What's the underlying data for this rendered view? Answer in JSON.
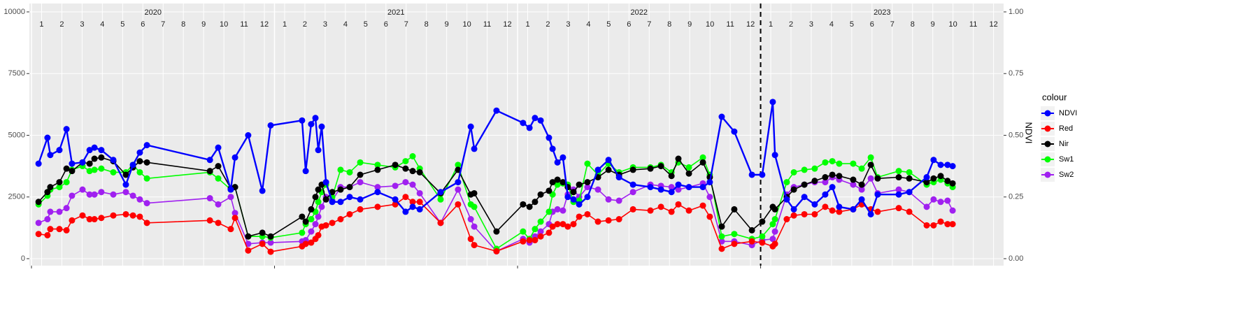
{
  "chart_data": {
    "type": "line",
    "x": [
      0.35,
      0.79,
      0.93,
      1.38,
      1.73,
      2.0,
      2.52,
      2.87,
      3.11,
      3.45,
      4.04,
      4.66,
      5.01,
      5.35,
      5.7,
      8.81,
      9.22,
      9.84,
      10.05,
      10.7,
      11.4,
      11.81,
      13.36,
      13.54,
      13.81,
      14.02,
      14.16,
      14.33,
      14.54,
      14.85,
      15.26,
      15.71,
      16.23,
      17.09,
      17.96,
      18.47,
      18.82,
      19.17,
      20.2,
      21.06,
      21.69,
      21.86,
      22.96,
      24.27,
      24.59,
      24.86,
      25.14,
      25.55,
      25.73,
      25.97,
      26.24,
      26.48,
      26.76,
      27.04,
      27.45,
      27.97,
      28.49,
      29.01,
      29.7,
      30.56,
      31.08,
      31.6,
      31.94,
      32.46,
      33.15,
      33.49,
      34.08,
      34.7,
      35.57,
      36.08,
      36.6,
      36.71,
      37.29,
      37.64,
      38.16,
      38.67,
      39.19,
      39.54,
      39.88,
      40.57,
      40.99,
      41.44,
      41.78,
      42.82,
      43.34,
      44.2,
      44.54,
      44.89,
      45.23,
      45.48
    ],
    "series": [
      {
        "name": "NDVI",
        "color": "#0000ff",
        "axis": "y2",
        "values": [
          0.385,
          0.49,
          0.42,
          0.44,
          0.525,
          0.385,
          0.39,
          0.44,
          0.45,
          0.44,
          0.4,
          0.3,
          0.38,
          0.43,
          0.46,
          0.4,
          0.45,
          0.28,
          0.41,
          0.5,
          0.275,
          0.54,
          0.56,
          0.355,
          0.545,
          0.57,
          0.44,
          0.535,
          0.31,
          0.23,
          0.23,
          0.25,
          0.24,
          0.27,
          0.24,
          0.19,
          0.21,
          0.2,
          0.27,
          0.31,
          0.535,
          0.445,
          0.6,
          0.55,
          0.53,
          0.57,
          0.56,
          0.49,
          0.445,
          0.39,
          0.41,
          0.25,
          0.24,
          0.22,
          0.25,
          0.36,
          0.4,
          0.33,
          0.3,
          0.29,
          0.28,
          0.27,
          0.3,
          0.29,
          0.29,
          0.31,
          0.575,
          0.515,
          0.34,
          0.34,
          0.635,
          0.42,
          0.24,
          0.2,
          0.25,
          0.22,
          0.26,
          0.29,
          0.21,
          0.2,
          0.24,
          0.18,
          0.26,
          0.26,
          0.27,
          0.33,
          0.4,
          0.38,
          0.38,
          0.375
        ]
      },
      {
        "name": "Red",
        "color": "#ff0000",
        "values": [
          1000,
          950,
          1200,
          1200,
          1150,
          1550,
          1750,
          1600,
          1600,
          1650,
          1750,
          1800,
          1750,
          1700,
          1450,
          1550,
          1450,
          1200,
          1650,
          330,
          600,
          280,
          500,
          600,
          650,
          800,
          950,
          1300,
          1350,
          1450,
          1600,
          1800,
          2000,
          2100,
          2200,
          2500,
          2300,
          2300,
          1450,
          2200,
          800,
          550,
          300,
          700,
          750,
          750,
          900,
          1050,
          1300,
          1400,
          1400,
          1300,
          1400,
          1700,
          1800,
          1500,
          1550,
          1600,
          2000,
          1950,
          2100,
          1900,
          2200,
          1950,
          2150,
          1700,
          400,
          600,
          700,
          650,
          500,
          600,
          1600,
          1750,
          1800,
          1800,
          2100,
          1950,
          1900,
          2000,
          2200,
          2000,
          1900,
          2050,
          1900,
          1350,
          1350,
          1500,
          1400,
          1400
        ]
      },
      {
        "name": "Nir",
        "color": "#000000",
        "values": [
          2300,
          2700,
          2900,
          3100,
          3650,
          3550,
          3900,
          3850,
          4050,
          4100,
          3950,
          3400,
          3700,
          3950,
          3900,
          3550,
          3750,
          2850,
          2900,
          900,
          1050,
          900,
          1700,
          1500,
          2000,
          2500,
          2800,
          3000,
          2400,
          2700,
          2800,
          2900,
          3400,
          3600,
          3800,
          3650,
          3550,
          3500,
          2650,
          3600,
          2600,
          2650,
          1100,
          2200,
          2100,
          2300,
          2600,
          2750,
          3100,
          3200,
          3100,
          2900,
          2700,
          3000,
          3100,
          3300,
          3600,
          3400,
          3600,
          3650,
          3750,
          3350,
          4050,
          3450,
          3900,
          3300,
          1300,
          2000,
          1150,
          1500,
          2100,
          2000,
          2500,
          2800,
          3000,
          3150,
          3300,
          3400,
          3350,
          3200,
          3000,
          3800,
          3250,
          3300,
          3250,
          3100,
          3250,
          3350,
          3150,
          3050
        ]
      },
      {
        "name": "Sw1",
        "color": "#00ff00",
        "values": [
          2200,
          2550,
          2800,
          2900,
          3100,
          3600,
          3750,
          3550,
          3600,
          3650,
          3500,
          3500,
          3800,
          3500,
          3250,
          3500,
          3250,
          2800,
          2900,
          900,
          900,
          850,
          1050,
          1400,
          1600,
          1900,
          2300,
          2700,
          3000,
          2500,
          3600,
          3500,
          3900,
          3800,
          3700,
          3950,
          4150,
          3650,
          2400,
          3800,
          2200,
          2100,
          400,
          1100,
          800,
          1200,
          1500,
          1900,
          2600,
          3000,
          3050,
          3000,
          2300,
          2350,
          3850,
          3400,
          3850,
          3500,
          3700,
          3700,
          3800,
          3500,
          3900,
          3700,
          4100,
          3400,
          900,
          1000,
          800,
          900,
          1400,
          1600,
          3100,
          3500,
          3600,
          3650,
          3900,
          3950,
          3850,
          3850,
          3650,
          4100,
          3300,
          3550,
          3500,
          3000,
          3100,
          3200,
          3050,
          2900
        ]
      },
      {
        "name": "Sw2",
        "color": "#a020f0",
        "values": [
          1450,
          1600,
          1900,
          1900,
          2050,
          2550,
          2800,
          2600,
          2600,
          2700,
          2600,
          2700,
          2550,
          2400,
          2250,
          2450,
          2200,
          2500,
          1850,
          600,
          650,
          650,
          700,
          750,
          1100,
          1400,
          1700,
          2100,
          2500,
          2350,
          2900,
          2900,
          3100,
          2900,
          2950,
          3100,
          3000,
          2650,
          1450,
          2800,
          1600,
          1300,
          300,
          800,
          650,
          900,
          1100,
          1400,
          1900,
          2000,
          1950,
          2600,
          2800,
          2500,
          2900,
          2800,
          2400,
          2350,
          2700,
          3000,
          2950,
          2900,
          2800,
          2900,
          3050,
          2500,
          700,
          700,
          550,
          750,
          800,
          1100,
          2600,
          2900,
          3000,
          3100,
          3100,
          3300,
          3200,
          3000,
          2800,
          3250,
          2650,
          2800,
          2700,
          2100,
          2400,
          2300,
          2350,
          1950
        ]
      }
    ],
    "xlim": [
      0,
      48
    ],
    "xticks": [
      {
        "value": 0.5,
        "label": "1"
      },
      {
        "value": 1.5,
        "label": "2"
      },
      {
        "value": 2.5,
        "label": "3"
      },
      {
        "value": 3.5,
        "label": "4"
      },
      {
        "value": 4.5,
        "label": "5"
      },
      {
        "value": 5.5,
        "label": "6"
      },
      {
        "value": 6.5,
        "label": "7"
      },
      {
        "value": 7.5,
        "label": "8"
      },
      {
        "value": 8.5,
        "label": "9"
      },
      {
        "value": 9.5,
        "label": "10"
      },
      {
        "value": 10.5,
        "label": "11"
      },
      {
        "value": 11.5,
        "label": "12"
      },
      {
        "value": 12.5,
        "label": "1"
      },
      {
        "value": 13.5,
        "label": "2"
      },
      {
        "value": 14.5,
        "label": "3"
      },
      {
        "value": 15.5,
        "label": "4"
      },
      {
        "value": 16.5,
        "label": "5"
      },
      {
        "value": 17.5,
        "label": "6"
      },
      {
        "value": 18.5,
        "label": "7"
      },
      {
        "value": 19.5,
        "label": "8"
      },
      {
        "value": 20.5,
        "label": "9"
      },
      {
        "value": 21.5,
        "label": "10"
      },
      {
        "value": 22.5,
        "label": "11"
      },
      {
        "value": 23.5,
        "label": "12"
      },
      {
        "value": 24.5,
        "label": "1"
      },
      {
        "value": 25.5,
        "label": "2"
      },
      {
        "value": 26.5,
        "label": "3"
      },
      {
        "value": 27.5,
        "label": "4"
      },
      {
        "value": 28.5,
        "label": "5"
      },
      {
        "value": 29.5,
        "label": "6"
      },
      {
        "value": 30.5,
        "label": "7"
      },
      {
        "value": 31.5,
        "label": "8"
      },
      {
        "value": 32.5,
        "label": "9"
      },
      {
        "value": 33.5,
        "label": "10"
      },
      {
        "value": 34.5,
        "label": "11"
      },
      {
        "value": 35.5,
        "label": "12"
      },
      {
        "value": 36.5,
        "label": "1"
      },
      {
        "value": 37.5,
        "label": "2"
      },
      {
        "value": 38.5,
        "label": "3"
      },
      {
        "value": 39.5,
        "label": "4"
      },
      {
        "value": 40.5,
        "label": "5"
      },
      {
        "value": 41.5,
        "label": "6"
      },
      {
        "value": 42.5,
        "label": "7"
      },
      {
        "value": 43.5,
        "label": "8"
      },
      {
        "value": 44.5,
        "label": "9"
      },
      {
        "value": 45.5,
        "label": "10"
      },
      {
        "value": 46.5,
        "label": "11"
      },
      {
        "value": 47.5,
        "label": "12"
      }
    ],
    "year_labels": [
      {
        "value": 6,
        "label": "2020"
      },
      {
        "value": 18,
        "label": "2021"
      },
      {
        "value": 30,
        "label": "2022"
      },
      {
        "value": 42,
        "label": "2023"
      }
    ],
    "vline": 36,
    "ylim": [
      0,
      10000
    ],
    "yticks": [
      0,
      2500,
      5000,
      7500,
      10000
    ],
    "y2lim": [
      0,
      1
    ],
    "y2ticks": [
      {
        "value": 0,
        "label": "0.00"
      },
      {
        "value": 0.25,
        "label": "0.25"
      },
      {
        "value": 0.5,
        "label": "0.50"
      },
      {
        "value": 0.75,
        "label": "0.75"
      },
      {
        "value": 1,
        "label": "1.00"
      }
    ],
    "y2label": "NDVI",
    "legend_title": "colour",
    "grid": true
  }
}
